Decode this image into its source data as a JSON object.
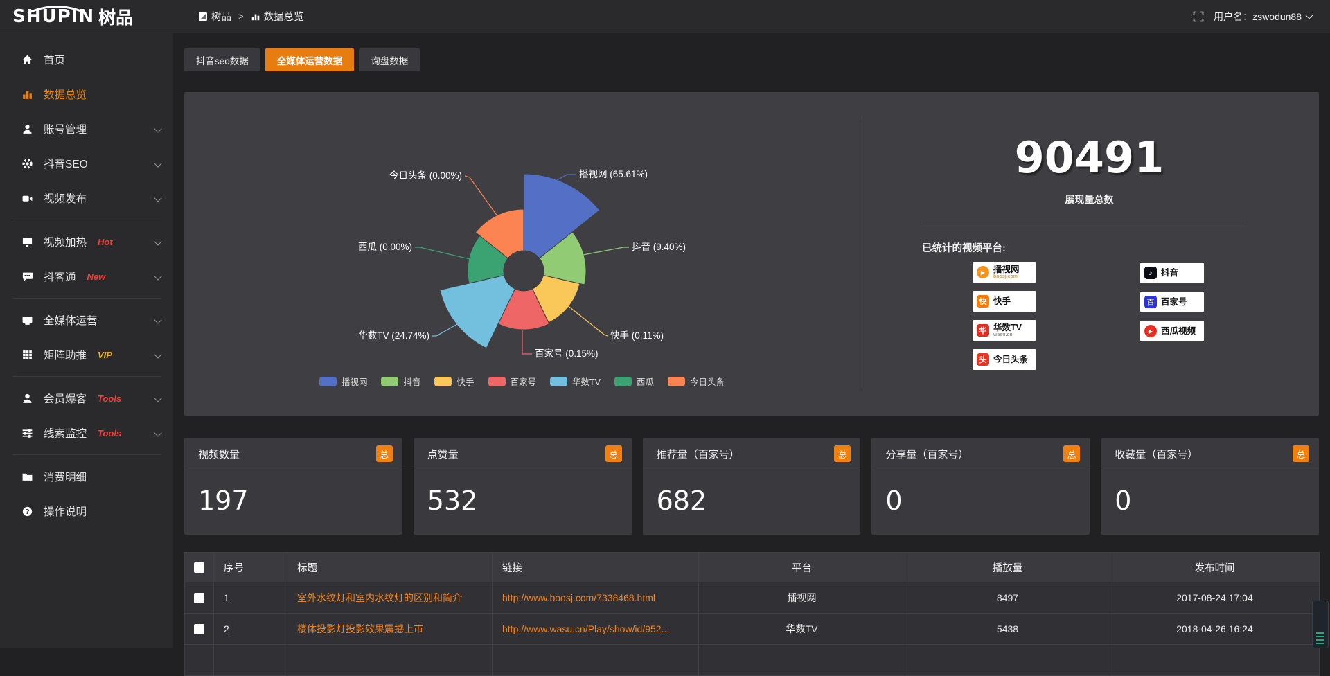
{
  "topbar": {
    "logo_en": "SHUPIN",
    "logo_cn": "树品",
    "breadcrumb": [
      "树品",
      "数据总览"
    ],
    "breadcrumb_sep": ">",
    "user": "用户名：zswodun88"
  },
  "sidebar": {
    "items": [
      {
        "label": "首页",
        "icon": "home-icon"
      },
      {
        "label": "数据总览",
        "icon": "bar-chart-icon",
        "active": true
      },
      {
        "label": "账号管理",
        "icon": "user-icon",
        "chevron": true
      },
      {
        "label": "抖音SEO",
        "icon": "gear-icon",
        "chevron": true
      },
      {
        "label": "视频发布",
        "icon": "video-icon",
        "chevron": true,
        "divider_after": true
      },
      {
        "label": "视频加热",
        "icon": "display-icon",
        "badge": "Hot",
        "badge_color": "#f83b3b",
        "chevron": true
      },
      {
        "label": "抖客通",
        "icon": "chat-icon",
        "badge": "New",
        "badge_color": "#f83b3b",
        "chevron": true,
        "divider_after": true
      },
      {
        "label": "全媒体运营",
        "icon": "monitor-icon",
        "chevron": true
      },
      {
        "label": "矩阵助推",
        "icon": "grid-icon",
        "badge": "VIP",
        "badge_color": "#f0b41f",
        "chevron": true,
        "divider_after": true
      },
      {
        "label": "会员爆客",
        "icon": "member-icon",
        "badge": "Tools",
        "badge_color": "#f83b3b",
        "chevron": true
      },
      {
        "label": "线索监控",
        "icon": "sliders-icon",
        "badge": "Tools",
        "badge_color": "#f83b3b",
        "chevron": true,
        "divider_after": true
      },
      {
        "label": "消费明细",
        "icon": "folder-icon"
      },
      {
        "label": "操作说明",
        "icon": "help-icon"
      }
    ]
  },
  "tabs": [
    {
      "label": "抖音seo数据"
    },
    {
      "label": "全媒体运营数据",
      "active": true
    },
    {
      "label": "询盘数据"
    }
  ],
  "chart_data": {
    "type": "pie",
    "rose": true,
    "title": "",
    "legend_position": "bottom",
    "series": [
      {
        "name": "播视网",
        "value": 65.61,
        "label": "播视网 (65.61%)",
        "color": "#5470c6"
      },
      {
        "name": "抖音",
        "value": 9.4,
        "label": "抖音 (9.40%)",
        "color": "#91cc75"
      },
      {
        "name": "快手",
        "value": 0.11,
        "label": "快手 (0.11%)",
        "color": "#fac858"
      },
      {
        "name": "百家号",
        "value": 0.15,
        "label": "百家号 (0.15%)",
        "color": "#ee6666"
      },
      {
        "name": "华数TV",
        "value": 24.74,
        "label": "华数TV (24.74%)",
        "color": "#73c0de"
      },
      {
        "name": "西瓜",
        "value": 0.0,
        "label": "西瓜 (0.00%)",
        "color": "#3ba272"
      },
      {
        "name": "今日头条",
        "value": 0.0,
        "label": "今日头条 (0.00%)",
        "color": "#fc8452"
      }
    ],
    "legend": [
      "播视网",
      "抖音",
      "快手",
      "百家号",
      "华数TV",
      "西瓜",
      "今日头条"
    ]
  },
  "summary": {
    "value": "90491",
    "label": "展现量总数"
  },
  "platforms": {
    "title": "已统计的视频平台:",
    "left": [
      {
        "name": "播视网",
        "sub": "boosj.com",
        "icon_color": "#f7941d",
        "icon_glyph": "▶",
        "round": true,
        "sub_color": "#f7941d"
      },
      {
        "name": "快手",
        "icon_color": "#ff7a00",
        "icon_glyph": "快"
      },
      {
        "name": "华数TV",
        "sub": "wasu.cn",
        "icon_color": "#e02c21",
        "icon_glyph": "华",
        "sub_color": "#999999"
      },
      {
        "name": "今日头条",
        "icon_color": "#ed3321",
        "icon_glyph": "头"
      }
    ],
    "right": [
      {
        "name": "抖音",
        "icon_color": "#0c0c14",
        "icon_glyph": "♪"
      },
      {
        "name": "百家号",
        "icon_color": "#2932e1",
        "icon_glyph": "百"
      },
      {
        "name": "西瓜视频",
        "icon_color": "#e63021",
        "icon_glyph": "▶",
        "round": true
      }
    ]
  },
  "stat_cards": [
    {
      "title": "视频数量",
      "badge": "总",
      "value": "197"
    },
    {
      "title": "点赞量",
      "badge": "总",
      "value": "532"
    },
    {
      "title": "推荐量（百家号）",
      "badge": "总",
      "value": "682"
    },
    {
      "title": "分享量（百家号）",
      "badge": "总",
      "value": "0"
    },
    {
      "title": "收藏量（百家号）",
      "badge": "总",
      "value": "0"
    }
  ],
  "table": {
    "columns": [
      "",
      "序号",
      "标题",
      "链接",
      "平台",
      "播放量",
      "发布时间"
    ],
    "rows": [
      {
        "index": "1",
        "title": "室外水纹灯和室内水纹灯的区别和简介",
        "link": "http://www.boosj.com/7338468.html",
        "platform": "播视网",
        "plays": "8497",
        "time": "2017-08-24 17:04"
      },
      {
        "index": "2",
        "title": "楼体投影灯投影效果震撼上市",
        "link": "http://www.wasu.cn/Play/show/id/952...",
        "platform": "华数TV",
        "plays": "5438",
        "time": "2018-04-26 16:24"
      }
    ]
  }
}
